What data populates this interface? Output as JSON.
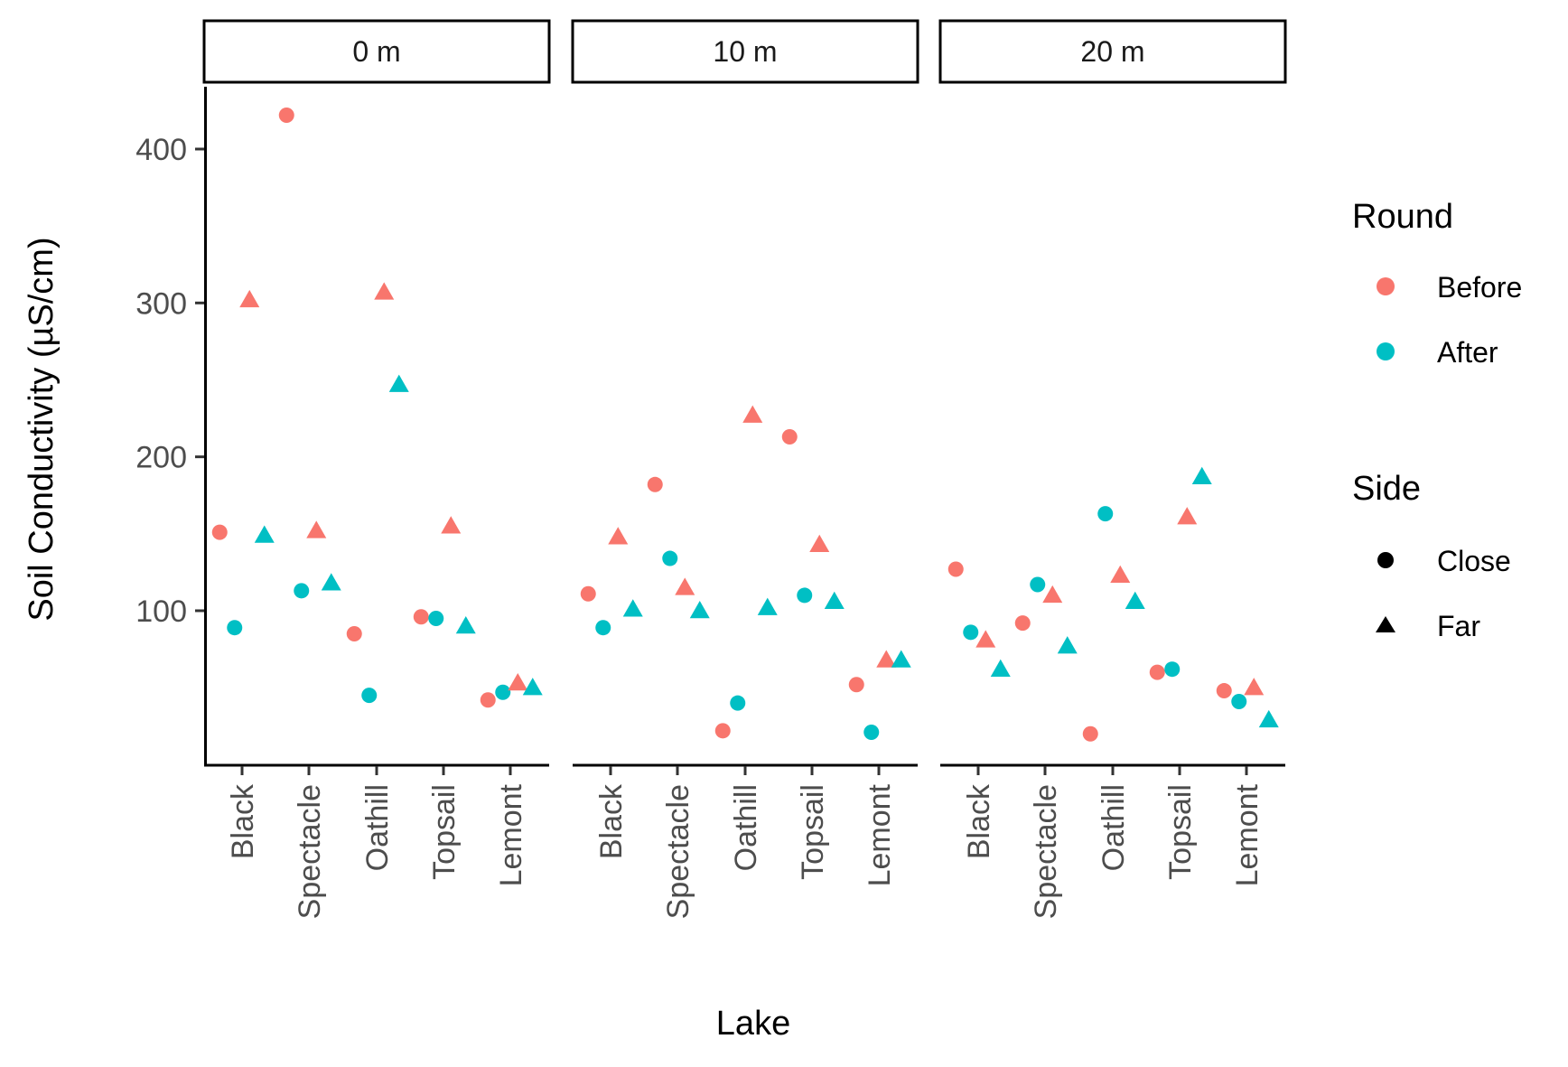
{
  "chart_data": {
    "type": "scatter",
    "xlabel": "Lake",
    "ylabel": "Soil Conductivity (µS/cm)",
    "ylim": [
      0,
      440
    ],
    "y_ticks": [
      100,
      200,
      300,
      400
    ],
    "categories": [
      "Black",
      "Spectacle",
      "Oathill",
      "Topsail",
      "Lemont"
    ],
    "panels": [
      "0 m",
      "10 m",
      "20 m"
    ],
    "grid": false,
    "legend": {
      "placement": "right",
      "round": {
        "title": "Round",
        "entries": [
          {
            "label": "Before",
            "color": "#F8766D"
          },
          {
            "label": "After",
            "color": "#00BFC4"
          }
        ]
      },
      "side": {
        "title": "Side",
        "entries": [
          {
            "label": "Close",
            "shape": "circle"
          },
          {
            "label": "Far",
            "shape": "triangle"
          }
        ]
      }
    },
    "points": [
      {
        "panel": "0 m",
        "lake": "Black",
        "round": "Before",
        "side": "Close",
        "value": 151
      },
      {
        "panel": "0 m",
        "lake": "Black",
        "round": "After",
        "side": "Close",
        "value": 89
      },
      {
        "panel": "0 m",
        "lake": "Black",
        "round": "Before",
        "side": "Far",
        "value": 302
      },
      {
        "panel": "0 m",
        "lake": "Black",
        "round": "After",
        "side": "Far",
        "value": 149
      },
      {
        "panel": "0 m",
        "lake": "Spectacle",
        "round": "Before",
        "side": "Close",
        "value": 422
      },
      {
        "panel": "0 m",
        "lake": "Spectacle",
        "round": "After",
        "side": "Close",
        "value": 113
      },
      {
        "panel": "0 m",
        "lake": "Spectacle",
        "round": "Before",
        "side": "Far",
        "value": 152
      },
      {
        "panel": "0 m",
        "lake": "Spectacle",
        "round": "After",
        "side": "Far",
        "value": 118
      },
      {
        "panel": "0 m",
        "lake": "Oathill",
        "round": "Before",
        "side": "Close",
        "value": 85
      },
      {
        "panel": "0 m",
        "lake": "Oathill",
        "round": "After",
        "side": "Close",
        "value": 45
      },
      {
        "panel": "0 m",
        "lake": "Oathill",
        "round": "Before",
        "side": "Far",
        "value": 307
      },
      {
        "panel": "0 m",
        "lake": "Oathill",
        "round": "After",
        "side": "Far",
        "value": 247
      },
      {
        "panel": "0 m",
        "lake": "Topsail",
        "round": "Before",
        "side": "Close",
        "value": 96
      },
      {
        "panel": "0 m",
        "lake": "Topsail",
        "round": "After",
        "side": "Close",
        "value": 95
      },
      {
        "panel": "0 m",
        "lake": "Topsail",
        "round": "Before",
        "side": "Far",
        "value": 155
      },
      {
        "panel": "0 m",
        "lake": "Topsail",
        "round": "After",
        "side": "Far",
        "value": 90
      },
      {
        "panel": "0 m",
        "lake": "Lemont",
        "round": "Before",
        "side": "Close",
        "value": 42
      },
      {
        "panel": "0 m",
        "lake": "Lemont",
        "round": "After",
        "side": "Close",
        "value": 47
      },
      {
        "panel": "0 m",
        "lake": "Lemont",
        "round": "Before",
        "side": "Far",
        "value": 53
      },
      {
        "panel": "0 m",
        "lake": "Lemont",
        "round": "After",
        "side": "Far",
        "value": 50
      },
      {
        "panel": "10 m",
        "lake": "Black",
        "round": "Before",
        "side": "Close",
        "value": 111
      },
      {
        "panel": "10 m",
        "lake": "Black",
        "round": "After",
        "side": "Close",
        "value": 89
      },
      {
        "panel": "10 m",
        "lake": "Black",
        "round": "Before",
        "side": "Far",
        "value": 148
      },
      {
        "panel": "10 m",
        "lake": "Black",
        "round": "After",
        "side": "Far",
        "value": 101
      },
      {
        "panel": "10 m",
        "lake": "Spectacle",
        "round": "Before",
        "side": "Close",
        "value": 182
      },
      {
        "panel": "10 m",
        "lake": "Spectacle",
        "round": "After",
        "side": "Close",
        "value": 134
      },
      {
        "panel": "10 m",
        "lake": "Spectacle",
        "round": "Before",
        "side": "Far",
        "value": 115
      },
      {
        "panel": "10 m",
        "lake": "Spectacle",
        "round": "After",
        "side": "Far",
        "value": 100
      },
      {
        "panel": "10 m",
        "lake": "Oathill",
        "round": "Before",
        "side": "Close",
        "value": 22
      },
      {
        "panel": "10 m",
        "lake": "Oathill",
        "round": "After",
        "side": "Close",
        "value": 40
      },
      {
        "panel": "10 m",
        "lake": "Oathill",
        "round": "Before",
        "side": "Far",
        "value": 227
      },
      {
        "panel": "10 m",
        "lake": "Oathill",
        "round": "After",
        "side": "Far",
        "value": 102
      },
      {
        "panel": "10 m",
        "lake": "Topsail",
        "round": "Before",
        "side": "Close",
        "value": 213
      },
      {
        "panel": "10 m",
        "lake": "Topsail",
        "round": "After",
        "side": "Close",
        "value": 110
      },
      {
        "panel": "10 m",
        "lake": "Topsail",
        "round": "Before",
        "side": "Far",
        "value": 143
      },
      {
        "panel": "10 m",
        "lake": "Topsail",
        "round": "After",
        "side": "Far",
        "value": 106
      },
      {
        "panel": "10 m",
        "lake": "Lemont",
        "round": "Before",
        "side": "Close",
        "value": 52
      },
      {
        "panel": "10 m",
        "lake": "Lemont",
        "round": "After",
        "side": "Close",
        "value": 21
      },
      {
        "panel": "10 m",
        "lake": "Lemont",
        "round": "Before",
        "side": "Far",
        "value": 68
      },
      {
        "panel": "10 m",
        "lake": "Lemont",
        "round": "After",
        "side": "Far",
        "value": 68
      },
      {
        "panel": "20 m",
        "lake": "Black",
        "round": "Before",
        "side": "Close",
        "value": 127
      },
      {
        "panel": "20 m",
        "lake": "Black",
        "round": "After",
        "side": "Close",
        "value": 86
      },
      {
        "panel": "20 m",
        "lake": "Black",
        "round": "Before",
        "side": "Far",
        "value": 81
      },
      {
        "panel": "20 m",
        "lake": "Black",
        "round": "After",
        "side": "Far",
        "value": 62
      },
      {
        "panel": "20 m",
        "lake": "Spectacle",
        "round": "Before",
        "side": "Close",
        "value": 92
      },
      {
        "panel": "20 m",
        "lake": "Spectacle",
        "round": "After",
        "side": "Close",
        "value": 117
      },
      {
        "panel": "20 m",
        "lake": "Spectacle",
        "round": "Before",
        "side": "Far",
        "value": 110
      },
      {
        "panel": "20 m",
        "lake": "Spectacle",
        "round": "After",
        "side": "Far",
        "value": 77
      },
      {
        "panel": "20 m",
        "lake": "Oathill",
        "round": "Before",
        "side": "Close",
        "value": 20
      },
      {
        "panel": "20 m",
        "lake": "Oathill",
        "round": "After",
        "side": "Close",
        "value": 163
      },
      {
        "panel": "20 m",
        "lake": "Oathill",
        "round": "Before",
        "side": "Far",
        "value": 123
      },
      {
        "panel": "20 m",
        "lake": "Oathill",
        "round": "After",
        "side": "Far",
        "value": 106
      },
      {
        "panel": "20 m",
        "lake": "Topsail",
        "round": "Before",
        "side": "Close",
        "value": 60
      },
      {
        "panel": "20 m",
        "lake": "Topsail",
        "round": "After",
        "side": "Close",
        "value": 62
      },
      {
        "panel": "20 m",
        "lake": "Topsail",
        "round": "Before",
        "side": "Far",
        "value": 161
      },
      {
        "panel": "20 m",
        "lake": "Topsail",
        "round": "After",
        "side": "Far",
        "value": 187
      },
      {
        "panel": "20 m",
        "lake": "Lemont",
        "round": "Before",
        "side": "Close",
        "value": 48
      },
      {
        "panel": "20 m",
        "lake": "Lemont",
        "round": "After",
        "side": "Close",
        "value": 41
      },
      {
        "panel": "20 m",
        "lake": "Lemont",
        "round": "Before",
        "side": "Far",
        "value": 50
      },
      {
        "panel": "20 m",
        "lake": "Lemont",
        "round": "After",
        "side": "Far",
        "value": 29
      }
    ]
  }
}
